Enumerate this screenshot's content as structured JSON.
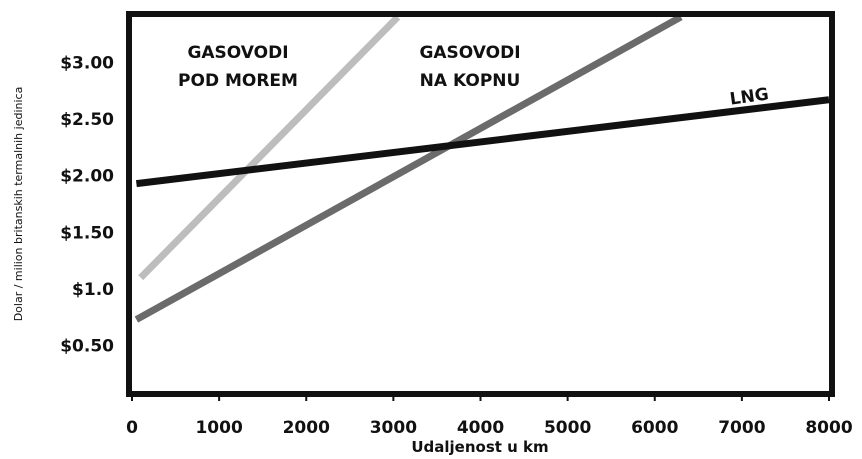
{
  "chart_data": {
    "type": "line",
    "title": "",
    "xlabel": "Udaljenost u km",
    "ylabel": "Dolar / milion britanskih termalnih jedinica",
    "xlim": [
      0,
      8000
    ],
    "ylim": [
      0.1,
      3.4
    ],
    "x_ticks": [
      "0",
      "1000",
      "2000",
      "3000",
      "4000",
      "5000",
      "6000",
      "7000",
      "8000"
    ],
    "x_tick_values": [
      0,
      1000,
      2000,
      3000,
      4000,
      5000,
      6000,
      7000,
      8000
    ],
    "y_ticks": [
      "$0.50",
      "$1.0",
      "$1.50",
      "$2.00",
      "$2.50",
      "$3.00"
    ],
    "y_tick_values": [
      0.5,
      1.0,
      1.5,
      2.0,
      2.5,
      3.0
    ],
    "grid": false,
    "series": [
      {
        "name": "GASOVODI POD MOREM",
        "label_lines": [
          "GASOVODI",
          "POD MOREM"
        ],
        "x": [
          100,
          3050
        ],
        "values": [
          1.1,
          3.4
        ],
        "color": "#bdbdbd"
      },
      {
        "name": "GASOVODI NA KOPNU",
        "label_lines": [
          "GASOVODI",
          "NA KOPNU"
        ],
        "x": [
          50,
          6300
        ],
        "values": [
          0.73,
          3.4
        ],
        "color": "#6b6b6b"
      },
      {
        "name": "LNG",
        "label_lines": [
          "LNG"
        ],
        "x": [
          50,
          8000
        ],
        "values": [
          1.93,
          2.67
        ],
        "color": "#111111"
      }
    ]
  }
}
